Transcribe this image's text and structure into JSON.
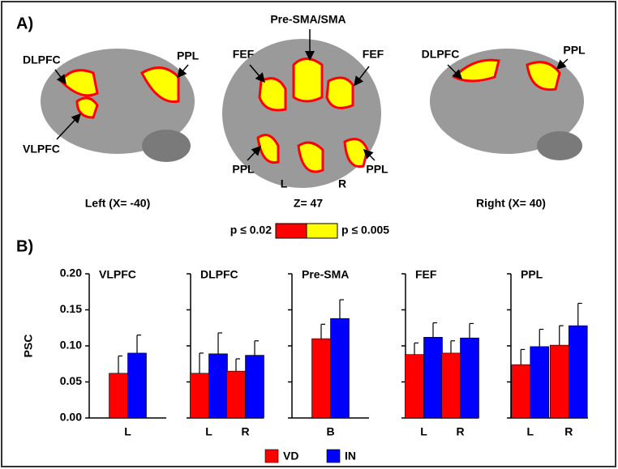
{
  "panel_a": {
    "label": "A)",
    "images": [
      {
        "caption": "Left (X= -40)",
        "labels": [
          "DLPFC",
          "VLPFC",
          "PPL"
        ]
      },
      {
        "caption": "Z= 47",
        "labels": [
          "Pre-SMA/SMA",
          "FEF",
          "FEF",
          "PPL",
          "PPL",
          "L",
          "R"
        ]
      },
      {
        "caption": "Right (X= 40)",
        "labels": [
          "DLPFC",
          "PPL"
        ]
      }
    ],
    "colorbar": {
      "low": "p ≤ 0.02",
      "high": "p ≤ 0.005",
      "low_color": "#ff0000",
      "high_color": "#ffff00"
    }
  },
  "panel_b_label": "B)",
  "chart_data": [
    {
      "type": "bar",
      "title": "VLPFC",
      "ylabel": "PSC",
      "categories": [
        "L"
      ],
      "series": [
        {
          "name": "VD",
          "color": "#ff0000",
          "values": [
            0.062
          ],
          "errors": [
            0.024
          ]
        },
        {
          "name": "IN",
          "color": "#0000ff",
          "values": [
            0.09
          ],
          "errors": [
            0.025
          ]
        }
      ],
      "ylim": [
        0,
        0.2
      ],
      "yticks": [
        {
          "value": 0,
          "label": "0.00"
        },
        {
          "value": 0.05,
          "label": "0.05"
        },
        {
          "value": 0.1,
          "label": "0.10"
        },
        {
          "value": 0.15,
          "label": "0.15"
        },
        {
          "value": 0.2,
          "label": "0.20"
        }
      ]
    },
    {
      "type": "bar",
      "title": "DLPFC",
      "categories": [
        "L",
        "R"
      ],
      "series": [
        {
          "color": "#ff0000",
          "values": [
            0.062,
            0.065
          ],
          "errors": [
            0.028,
            0.017
          ]
        },
        {
          "color": "#0000ff",
          "values": [
            0.089,
            0.087
          ],
          "errors": [
            0.029,
            0.02
          ]
        }
      ],
      "ylim": [
        0,
        0.2
      ],
      "yticks": [
        0,
        0.05,
        0.1,
        0.15,
        0.2
      ]
    },
    {
      "type": "bar",
      "title": "Pre-SMA",
      "categories": [
        "B"
      ],
      "series": [
        {
          "color": "#ff0000",
          "values": [
            0.11
          ],
          "errors": [
            0.02
          ]
        },
        {
          "color": "#0000ff",
          "values": [
            0.138
          ],
          "errors": [
            0.026
          ]
        }
      ],
      "ylim": [
        0,
        0.2
      ],
      "yticks": [
        0,
        0.05,
        0.1,
        0.15,
        0.2
      ]
    },
    {
      "type": "bar",
      "title": "FEF",
      "categories": [
        "L",
        "R"
      ],
      "series": [
        {
          "color": "#ff0000",
          "values": [
            0.088,
            0.09
          ],
          "errors": [
            0.016,
            0.017
          ]
        },
        {
          "color": "#0000ff",
          "values": [
            0.112,
            0.111
          ],
          "errors": [
            0.02,
            0.02
          ]
        }
      ],
      "ylim": [
        0,
        0.2
      ],
      "yticks": [
        0,
        0.05,
        0.1,
        0.15,
        0.2
      ]
    },
    {
      "type": "bar",
      "title": "PPL",
      "categories": [
        "L",
        "R"
      ],
      "series": [
        {
          "color": "#ff0000",
          "values": [
            0.074,
            0.101
          ],
          "errors": [
            0.021,
            0.027
          ]
        },
        {
          "color": "#0000ff",
          "values": [
            0.099,
            0.128
          ],
          "errors": [
            0.024,
            0.031
          ]
        }
      ],
      "ylim": [
        0,
        0.2
      ],
      "yticks": [
        0,
        0.05,
        0.1,
        0.15,
        0.2
      ]
    }
  ]
}
